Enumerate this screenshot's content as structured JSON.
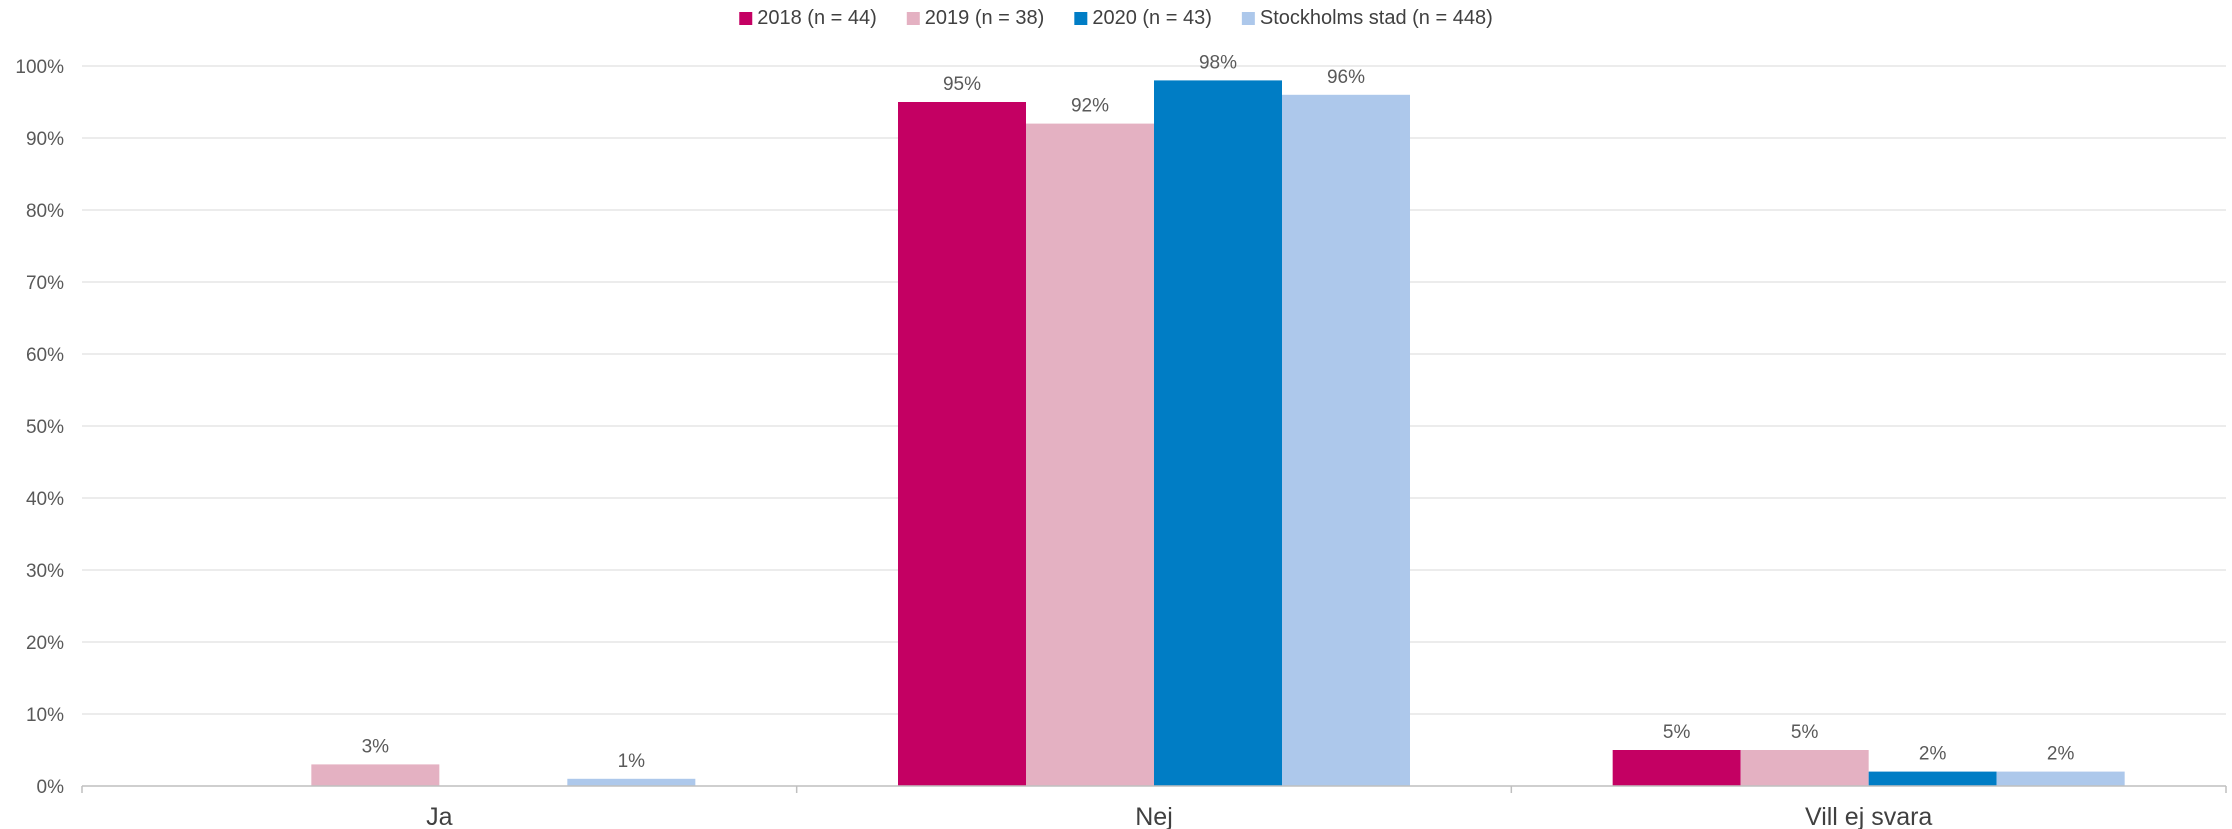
{
  "chart_data": {
    "type": "bar",
    "categories": [
      "Ja",
      "Nej",
      "Vill ej svara"
    ],
    "series": [
      {
        "name": "2018 (n = 44)",
        "color": "#C40063",
        "values": [
          0,
          95,
          5
        ],
        "labels": [
          "",
          "95%",
          "5%"
        ]
      },
      {
        "name": "2019 (n = 38)",
        "color": "#E4B1C2",
        "values": [
          3,
          92,
          5
        ],
        "labels": [
          "3%",
          "92%",
          "5%"
        ]
      },
      {
        "name": "2020 (n = 43)",
        "color": "#007DC5",
        "values": [
          0,
          98,
          2
        ],
        "labels": [
          "",
          "98%",
          "2%"
        ]
      },
      {
        "name": "Stockholms stad (n = 448)",
        "color": "#ADC8EB",
        "values": [
          1,
          96,
          2
        ],
        "labels": [
          "1%",
          "96%",
          "2%"
        ]
      }
    ],
    "yticks": [
      "0%",
      "10%",
      "20%",
      "30%",
      "40%",
      "50%",
      "60%",
      "70%",
      "80%",
      "90%",
      "100%"
    ],
    "ylim": [
      0,
      100
    ],
    "grid": true,
    "legend_position": "top-center"
  }
}
